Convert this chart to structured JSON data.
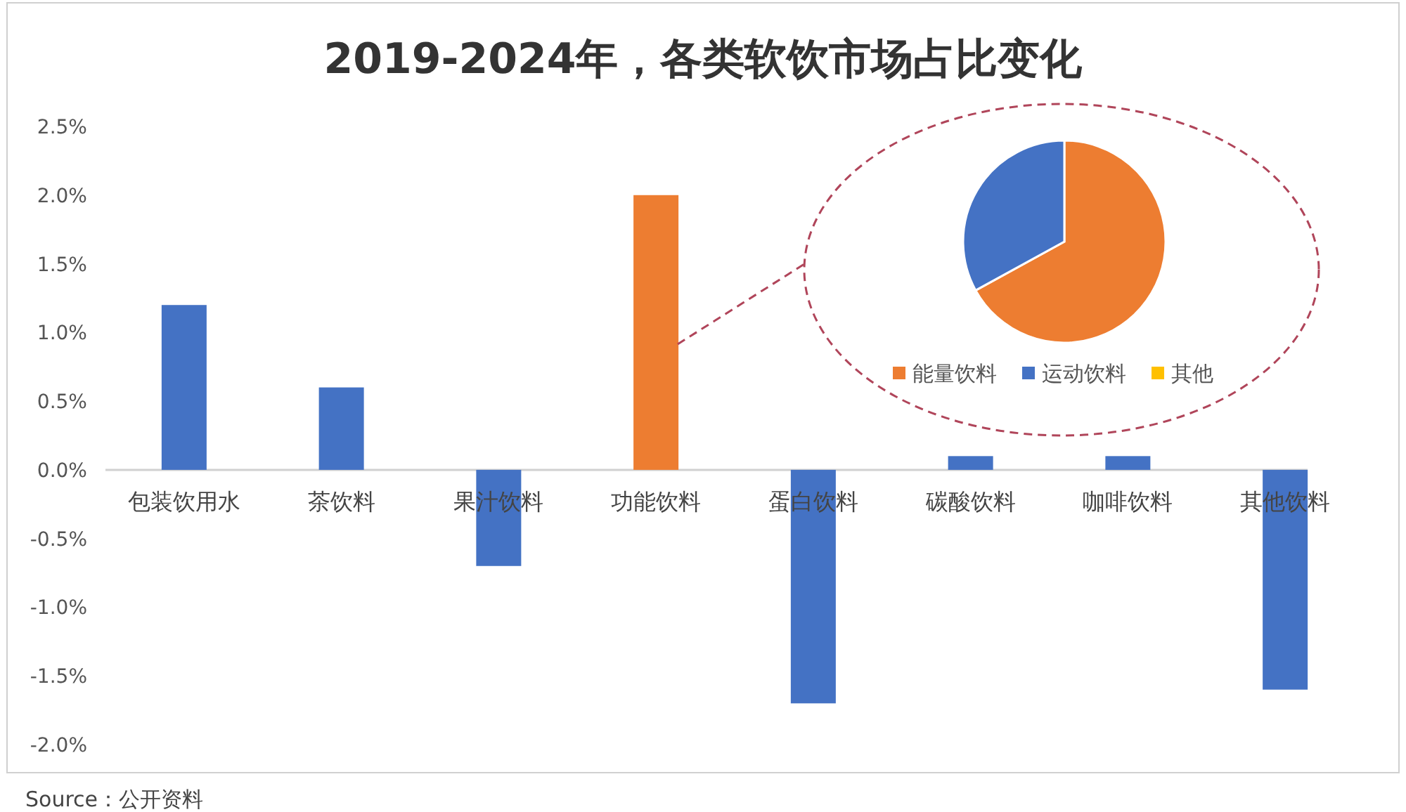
{
  "chart_data": [
    {
      "type": "bar",
      "title": "2019-2024年，各类软饮市场占比变化",
      "categories": [
        "包装饮用水",
        "茶饮料",
        "果汁饮料",
        "功能饮料",
        "蛋白饮料",
        "碳酸饮料",
        "咖啡饮料",
        "其他饮料"
      ],
      "values": [
        1.2,
        0.6,
        -0.7,
        2.0,
        -1.7,
        0.1,
        0.1,
        -1.6
      ],
      "colors": [
        "#4472c4",
        "#4472c4",
        "#4472c4",
        "#ed7d31",
        "#4472c4",
        "#4472c4",
        "#4472c4",
        "#4472c4"
      ],
      "ylim": [
        -2.0,
        2.5
      ],
      "yticks": [
        {
          "value": -2.0,
          "label": "-2.0%"
        },
        {
          "value": -1.5,
          "label": "-1.5%"
        },
        {
          "value": -1.0,
          "label": "-1.0%"
        },
        {
          "value": -0.5,
          "label": "-0.5%"
        },
        {
          "value": 0.0,
          "label": "0.0%"
        },
        {
          "value": 0.5,
          "label": "0.5%"
        },
        {
          "value": 1.0,
          "label": "1.0%"
        },
        {
          "value": 1.5,
          "label": "1.5%"
        },
        {
          "value": 2.0,
          "label": "2.0%"
        },
        {
          "value": 2.5,
          "label": "2.5%"
        }
      ],
      "annotations": [
        "Source：公开资料"
      ]
    },
    {
      "type": "pie",
      "categories": [
        "能量饮料",
        "运动饮料",
        "其他"
      ],
      "values": [
        67,
        33,
        0
      ],
      "colors": [
        "#ed7d31",
        "#4472c4",
        "#ffc000"
      ],
      "legend": "bottom"
    }
  ]
}
